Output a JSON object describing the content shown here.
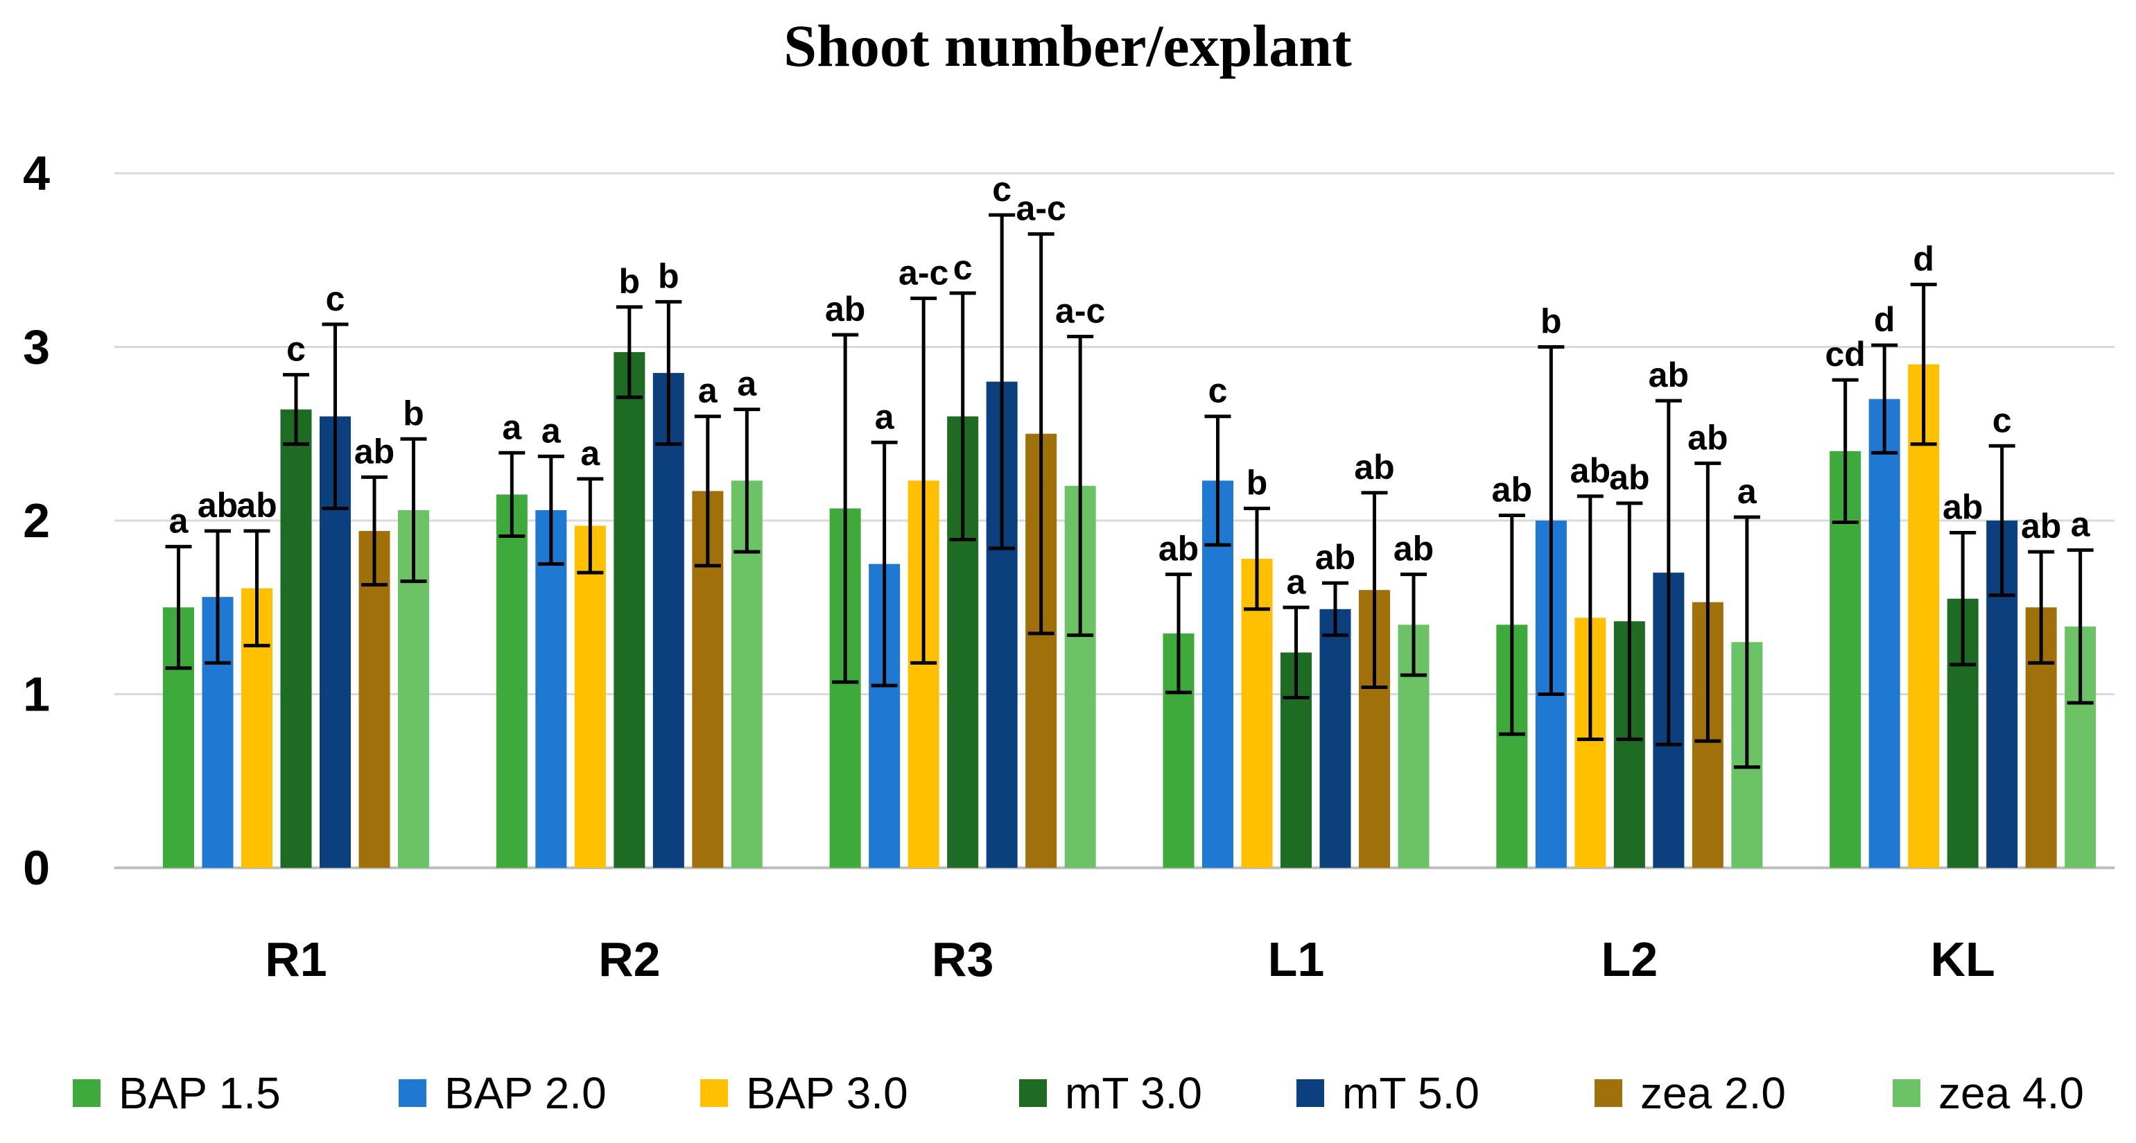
{
  "chart_data": {
    "type": "bar",
    "title": "Shoot number/explant",
    "xlabel": "",
    "ylabel": "",
    "ylim": [
      0,
      4
    ],
    "yticks": [
      "0",
      "1",
      "2",
      "3",
      "4"
    ],
    "grid": true,
    "legend_position": "bottom",
    "categories": [
      "R1",
      "R2",
      "R3",
      "L1",
      "L2",
      "KL"
    ],
    "series": [
      {
        "name": "BAP 1.5",
        "color": "#3daa3b",
        "values": [
          1.5,
          2.15,
          2.07,
          1.35,
          1.4,
          2.4
        ],
        "errors": [
          0.35,
          0.24,
          1.0,
          0.34,
          0.63,
          0.41
        ],
        "labels": [
          "a",
          "a",
          "ab",
          "ab",
          "ab",
          "cd"
        ]
      },
      {
        "name": "BAP 2.0",
        "color": "#1f78d1",
        "values": [
          1.56,
          2.06,
          1.75,
          2.23,
          2.0,
          2.7
        ],
        "errors": [
          0.38,
          0.31,
          0.7,
          0.37,
          1.0,
          0.31
        ],
        "labels": [
          "ab",
          "a",
          "a",
          "c",
          "b",
          "d"
        ]
      },
      {
        "name": "BAP 3.0",
        "color": "#ffc000",
        "values": [
          1.61,
          1.97,
          2.23,
          1.78,
          1.44,
          2.9
        ],
        "errors": [
          0.33,
          0.27,
          1.05,
          0.29,
          0.7,
          0.46
        ],
        "labels": [
          "ab",
          "a",
          "a-c",
          "b",
          "ab",
          "d"
        ]
      },
      {
        "name": "mT 3.0",
        "color": "#1e6b23",
        "values": [
          2.64,
          2.97,
          2.6,
          1.24,
          1.42,
          1.55
        ],
        "errors": [
          0.2,
          0.26,
          0.71,
          0.26,
          0.68,
          0.38
        ],
        "labels": [
          "c",
          "b",
          "c",
          "a",
          "ab",
          "ab"
        ]
      },
      {
        "name": "mT 5.0",
        "color": "#0b3f7d",
        "values": [
          2.6,
          2.85,
          2.8,
          1.49,
          1.7,
          2.0
        ],
        "errors": [
          0.53,
          0.41,
          0.96,
          0.15,
          0.99,
          0.43
        ],
        "labels": [
          "c",
          "b",
          "c",
          "ab",
          "ab",
          "c"
        ]
      },
      {
        "name": "zea 2.0",
        "color": "#a0700a",
        "values": [
          1.94,
          2.17,
          2.5,
          1.6,
          1.53,
          1.5
        ],
        "errors": [
          0.31,
          0.43,
          1.15,
          0.56,
          0.8,
          0.32
        ],
        "labels": [
          "ab",
          "a",
          "a-c",
          "ab",
          "ab",
          "ab"
        ]
      },
      {
        "name": "zea 4.0",
        "color": "#6cc366",
        "values": [
          2.06,
          2.23,
          2.2,
          1.4,
          1.3,
          1.39
        ],
        "errors": [
          0.41,
          0.41,
          0.86,
          0.29,
          0.72,
          0.44
        ],
        "labels": [
          "b",
          "a",
          "a-c",
          "ab",
          "a",
          "a"
        ]
      }
    ]
  }
}
